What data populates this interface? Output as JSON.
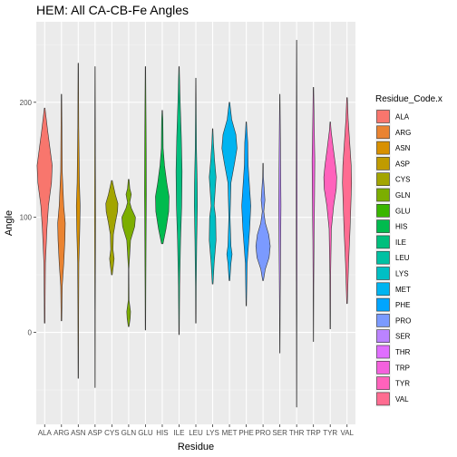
{
  "chart_data": {
    "type": "violin",
    "title": "HEM: All CA-CB-Fe Angles",
    "xlabel": "Residue",
    "ylabel": "Angle",
    "categories": [
      "ALA",
      "ARG",
      "ASN",
      "ASP",
      "CYS",
      "GLN",
      "GLU",
      "HIS",
      "ILE",
      "LEU",
      "LYS",
      "MET",
      "PHE",
      "PRO",
      "SER",
      "THR",
      "TRP",
      "TYR",
      "VAL"
    ],
    "y_ticks": [
      0,
      100,
      200
    ],
    "ylim": [
      -80,
      270
    ],
    "grid": true,
    "legend_title": "Residue_Code.x",
    "legend_position": "right",
    "series": [
      {
        "name": "ALA",
        "color": "#F8766D",
        "min": 8,
        "max": 195,
        "profile": [
          [
            8,
            0.04
          ],
          [
            30,
            0.06
          ],
          [
            60,
            0.1
          ],
          [
            90,
            0.3
          ],
          [
            110,
            0.5
          ],
          [
            130,
            0.9
          ],
          [
            145,
            1.0
          ],
          [
            160,
            0.7
          ],
          [
            175,
            0.4
          ],
          [
            195,
            0.04
          ]
        ]
      },
      {
        "name": "ARG",
        "color": "#EA8331",
        "min": 10,
        "max": 207,
        "profile": [
          [
            10,
            0.04
          ],
          [
            40,
            0.1
          ],
          [
            60,
            0.3
          ],
          [
            80,
            0.45
          ],
          [
            95,
            0.5
          ],
          [
            110,
            0.3
          ],
          [
            140,
            0.1
          ],
          [
            180,
            0.06
          ],
          [
            207,
            0.03
          ]
        ]
      },
      {
        "name": "ASN",
        "color": "#D89000",
        "min": -40,
        "max": 234,
        "profile": [
          [
            -40,
            0.03
          ],
          [
            20,
            0.05
          ],
          [
            60,
            0.08
          ],
          [
            90,
            0.2
          ],
          [
            110,
            0.25
          ],
          [
            130,
            0.15
          ],
          [
            180,
            0.06
          ],
          [
            234,
            0.03
          ]
        ]
      },
      {
        "name": "ASP",
        "color": "#C09B00",
        "min": -48,
        "max": 231,
        "profile": [
          [
            -48,
            0.02
          ],
          [
            20,
            0.03
          ],
          [
            60,
            0.05
          ],
          [
            100,
            0.07
          ],
          [
            140,
            0.05
          ],
          [
            200,
            0.03
          ],
          [
            231,
            0.02
          ]
        ]
      },
      {
        "name": "CYS",
        "color": "#A3A500",
        "min": 50,
        "max": 132,
        "profile": [
          [
            50,
            0.05
          ],
          [
            58,
            0.2
          ],
          [
            64,
            0.3
          ],
          [
            72,
            0.15
          ],
          [
            85,
            0.2
          ],
          [
            95,
            0.45
          ],
          [
            105,
            0.75
          ],
          [
            112,
            0.8
          ],
          [
            120,
            0.45
          ],
          [
            132,
            0.05
          ]
        ]
      },
      {
        "name": "GLN",
        "color": "#7CAE00",
        "min": 5,
        "max": 133,
        "profile": [
          [
            5,
            0.05
          ],
          [
            12,
            0.2
          ],
          [
            18,
            0.25
          ],
          [
            28,
            0.05
          ],
          [
            55,
            0.03
          ],
          [
            80,
            0.25
          ],
          [
            92,
            0.8
          ],
          [
            100,
            0.9
          ],
          [
            108,
            0.35
          ],
          [
            113,
            0.15
          ],
          [
            120,
            0.35
          ],
          [
            125,
            0.15
          ],
          [
            133,
            0.05
          ]
        ]
      },
      {
        "name": "GLU",
        "color": "#39B600",
        "min": 2,
        "max": 231,
        "profile": [
          [
            2,
            0.03
          ],
          [
            40,
            0.05
          ],
          [
            80,
            0.08
          ],
          [
            120,
            0.12
          ],
          [
            160,
            0.1
          ],
          [
            200,
            0.06
          ],
          [
            231,
            0.03
          ]
        ]
      },
      {
        "name": "HIS",
        "color": "#00BB4E",
        "min": 77,
        "max": 193,
        "profile": [
          [
            77,
            0.1
          ],
          [
            90,
            0.5
          ],
          [
            105,
            0.85
          ],
          [
            118,
            0.9
          ],
          [
            130,
            0.6
          ],
          [
            145,
            0.3
          ],
          [
            160,
            0.12
          ],
          [
            175,
            0.1
          ],
          [
            185,
            0.08
          ],
          [
            193,
            0.03
          ]
        ]
      },
      {
        "name": "ILE",
        "color": "#00BF7D",
        "min": -2,
        "max": 231,
        "profile": [
          [
            -2,
            0.03
          ],
          [
            40,
            0.08
          ],
          [
            80,
            0.2
          ],
          [
            110,
            0.35
          ],
          [
            140,
            0.4
          ],
          [
            170,
            0.3
          ],
          [
            200,
            0.15
          ],
          [
            231,
            0.03
          ]
        ]
      },
      {
        "name": "LEU",
        "color": "#00C1A3",
        "min": 8,
        "max": 221,
        "profile": [
          [
            8,
            0.03
          ],
          [
            40,
            0.05
          ],
          [
            80,
            0.12
          ],
          [
            110,
            0.2
          ],
          [
            130,
            0.18
          ],
          [
            160,
            0.08
          ],
          [
            200,
            0.04
          ],
          [
            221,
            0.02
          ]
        ]
      },
      {
        "name": "LYS",
        "color": "#00BFC4",
        "min": 42,
        "max": 177,
        "profile": [
          [
            42,
            0.05
          ],
          [
            60,
            0.2
          ],
          [
            80,
            0.45
          ],
          [
            100,
            0.4
          ],
          [
            110,
            0.2
          ],
          [
            120,
            0.3
          ],
          [
            135,
            0.45
          ],
          [
            150,
            0.25
          ],
          [
            165,
            0.1
          ],
          [
            177,
            0.03
          ]
        ]
      },
      {
        "name": "MET",
        "color": "#00B4F0",
        "min": 45,
        "max": 200,
        "profile": [
          [
            45,
            0.05
          ],
          [
            60,
            0.2
          ],
          [
            68,
            0.35
          ],
          [
            75,
            0.2
          ],
          [
            100,
            0.08
          ],
          [
            130,
            0.2
          ],
          [
            148,
            0.7
          ],
          [
            160,
            1.0
          ],
          [
            172,
            0.85
          ],
          [
            185,
            0.3
          ],
          [
            200,
            0.04
          ]
        ]
      },
      {
        "name": "PHE",
        "color": "#00A5FF",
        "min": 23,
        "max": 183,
        "profile": [
          [
            23,
            0.03
          ],
          [
            60,
            0.12
          ],
          [
            90,
            0.45
          ],
          [
            110,
            0.6
          ],
          [
            125,
            0.45
          ],
          [
            145,
            0.25
          ],
          [
            165,
            0.2
          ],
          [
            175,
            0.1
          ],
          [
            183,
            0.03
          ]
        ]
      },
      {
        "name": "PRO",
        "color": "#7B9AFF",
        "min": 45,
        "max": 147,
        "profile": [
          [
            45,
            0.05
          ],
          [
            55,
            0.3
          ],
          [
            65,
            0.8
          ],
          [
            75,
            0.95
          ],
          [
            85,
            0.75
          ],
          [
            95,
            0.3
          ],
          [
            105,
            0.1
          ],
          [
            115,
            0.25
          ],
          [
            125,
            0.15
          ],
          [
            135,
            0.05
          ],
          [
            147,
            0.03
          ]
        ]
      },
      {
        "name": "SER",
        "color": "#BB83FF",
        "min": -18,
        "max": 207,
        "profile": [
          [
            -18,
            0.02
          ],
          [
            30,
            0.05
          ],
          [
            70,
            0.1
          ],
          [
            110,
            0.15
          ],
          [
            150,
            0.1
          ],
          [
            180,
            0.06
          ],
          [
            207,
            0.02
          ]
        ]
      },
      {
        "name": "THR",
        "color": "#E06EFF",
        "min": -65,
        "max": 254,
        "profile": [
          [
            -65,
            0.02
          ],
          [
            0,
            0.03
          ],
          [
            60,
            0.05
          ],
          [
            120,
            0.06
          ],
          [
            180,
            0.04
          ],
          [
            254,
            0.02
          ]
        ]
      },
      {
        "name": "TRP",
        "color": "#F461DD",
        "min": -8,
        "max": 213,
        "profile": [
          [
            -8,
            0.02
          ],
          [
            40,
            0.04
          ],
          [
            80,
            0.08
          ],
          [
            120,
            0.15
          ],
          [
            150,
            0.18
          ],
          [
            180,
            0.1
          ],
          [
            213,
            0.03
          ]
        ]
      },
      {
        "name": "TYR",
        "color": "#FF62BC",
        "min": 3,
        "max": 183,
        "profile": [
          [
            3,
            0.03
          ],
          [
            50,
            0.05
          ],
          [
            90,
            0.15
          ],
          [
            110,
            0.45
          ],
          [
            125,
            0.8
          ],
          [
            135,
            0.85
          ],
          [
            145,
            0.7
          ],
          [
            160,
            0.4
          ],
          [
            175,
            0.12
          ],
          [
            183,
            0.03
          ]
        ]
      },
      {
        "name": "VAL",
        "color": "#FF6C91",
        "min": 25,
        "max": 204,
        "profile": [
          [
            25,
            0.04
          ],
          [
            60,
            0.2
          ],
          [
            90,
            0.4
          ],
          [
            110,
            0.5
          ],
          [
            130,
            0.6
          ],
          [
            145,
            0.55
          ],
          [
            165,
            0.35
          ],
          [
            185,
            0.15
          ],
          [
            204,
            0.04
          ]
        ]
      }
    ]
  }
}
